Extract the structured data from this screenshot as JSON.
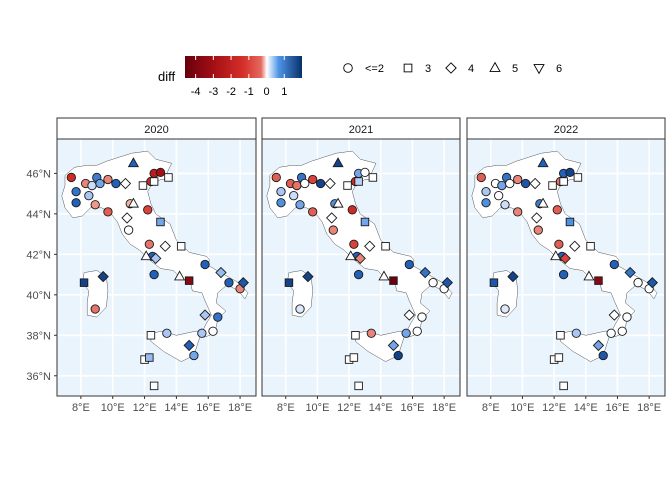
{
  "chart_data": {
    "type": "scatter",
    "layout": "faceted-map",
    "facets": [
      "2020",
      "2021",
      "2022"
    ],
    "xlim": [
      6.5,
      19
    ],
    "ylim": [
      35,
      47.7
    ],
    "x_ticks": [
      8,
      10,
      12,
      14,
      16,
      18
    ],
    "x_tick_labels": [
      "8°E",
      "10°E",
      "12°E",
      "14°E",
      "16°E",
      "18°E"
    ],
    "y_ticks": [
      36,
      38,
      40,
      42,
      44,
      46
    ],
    "y_tick_labels": [
      "36°N",
      "38°N",
      "40°N",
      "42°N",
      "44°N",
      "46°N"
    ],
    "grid": true,
    "legend_position": "top",
    "color_legend": {
      "title": "diff",
      "range": [
        -4.6,
        2
      ],
      "ticks": [
        -4,
        -3,
        -2,
        -1,
        0,
        1
      ],
      "tick_labels": [
        "-4",
        "-3",
        "-2",
        "-1",
        "0",
        "1"
      ],
      "colors": [
        "#67000d",
        "#b2182b",
        "#d6604d",
        "#e8c4b8",
        "#ffffff",
        "#4393c3",
        "#2166ac",
        "#08306b"
      ]
    },
    "shape_legend": [
      {
        "label": "<=2",
        "shape": "circle"
      },
      {
        "label": "3",
        "shape": "square"
      },
      {
        "label": "4",
        "shape": "diamond"
      },
      {
        "label": "5",
        "shape": "triangle-up"
      },
      {
        "label": "6",
        "shape": "triangle-down"
      }
    ],
    "stations": [
      {
        "lon": 7.4,
        "lat": 45.8,
        "shape": "circle"
      },
      {
        "lon": 7.7,
        "lat": 45.1,
        "shape": "circle"
      },
      {
        "lon": 7.7,
        "lat": 44.55,
        "shape": "circle"
      },
      {
        "lon": 8.3,
        "lat": 45.5,
        "shape": "circle"
      },
      {
        "lon": 8.7,
        "lat": 45.4,
        "shape": "circle"
      },
      {
        "lon": 8.9,
        "lat": 44.45,
        "shape": "circle"
      },
      {
        "lon": 9.0,
        "lat": 45.8,
        "shape": "circle"
      },
      {
        "lon": 8.5,
        "lat": 44.9,
        "shape": "circle"
      },
      {
        "lon": 9.2,
        "lat": 45.5,
        "shape": "circle"
      },
      {
        "lon": 9.7,
        "lat": 45.7,
        "shape": "circle"
      },
      {
        "lon": 9.7,
        "lat": 44.1,
        "shape": "circle"
      },
      {
        "lon": 10.2,
        "lat": 45.5,
        "shape": "circle"
      },
      {
        "lon": 10.8,
        "lat": 45.5,
        "shape": "diamond"
      },
      {
        "lon": 11.1,
        "lat": 44.5,
        "shape": "circle"
      },
      {
        "lon": 10.9,
        "lat": 43.8,
        "shape": "diamond"
      },
      {
        "lon": 11.0,
        "lat": 43.2,
        "shape": "circle"
      },
      {
        "lon": 11.3,
        "lat": 44.5,
        "shape": "triangle-up"
      },
      {
        "lon": 11.3,
        "lat": 46.5,
        "shape": "triangle-up"
      },
      {
        "lon": 11.9,
        "lat": 45.4,
        "shape": "square"
      },
      {
        "lon": 12.2,
        "lat": 44.2,
        "shape": "circle"
      },
      {
        "lon": 12.4,
        "lat": 45.6,
        "shape": "circle"
      },
      {
        "lon": 12.6,
        "lat": 46.0,
        "shape": "circle"
      },
      {
        "lon": 12.6,
        "lat": 45.6,
        "shape": "square"
      },
      {
        "lon": 13.0,
        "lat": 46.05,
        "shape": "circle"
      },
      {
        "lon": 13.5,
        "lat": 45.8,
        "shape": "square"
      },
      {
        "lon": 12.5,
        "lat": 41.9,
        "shape": "circle"
      },
      {
        "lon": 13.0,
        "lat": 43.6,
        "shape": "square"
      },
      {
        "lon": 13.3,
        "lat": 42.4,
        "shape": "diamond"
      },
      {
        "lon": 12.3,
        "lat": 42.5,
        "shape": "circle"
      },
      {
        "lon": 12.1,
        "lat": 41.9,
        "shape": "triangle-up"
      },
      {
        "lon": 12.7,
        "lat": 41.8,
        "shape": "diamond"
      },
      {
        "lon": 12.6,
        "lat": 41.0,
        "shape": "circle"
      },
      {
        "lon": 14.3,
        "lat": 42.4,
        "shape": "square"
      },
      {
        "lon": 14.2,
        "lat": 40.9,
        "shape": "triangle-up"
      },
      {
        "lon": 15.8,
        "lat": 41.5,
        "shape": "circle"
      },
      {
        "lon": 14.8,
        "lat": 40.7,
        "shape": "square"
      },
      {
        "lon": 16.8,
        "lat": 41.1,
        "shape": "diamond"
      },
      {
        "lon": 17.3,
        "lat": 40.6,
        "shape": "circle"
      },
      {
        "lon": 18.0,
        "lat": 40.3,
        "shape": "circle"
      },
      {
        "lon": 18.2,
        "lat": 40.6,
        "shape": "diamond"
      },
      {
        "lon": 15.8,
        "lat": 39.0,
        "shape": "diamond"
      },
      {
        "lon": 16.3,
        "lat": 38.2,
        "shape": "circle"
      },
      {
        "lon": 16.6,
        "lat": 38.9,
        "shape": "circle"
      },
      {
        "lon": 15.6,
        "lat": 38.1,
        "shape": "circle"
      },
      {
        "lon": 8.2,
        "lat": 40.6,
        "shape": "square"
      },
      {
        "lon": 9.4,
        "lat": 40.9,
        "shape": "diamond"
      },
      {
        "lon": 8.9,
        "lat": 39.3,
        "shape": "circle"
      },
      {
        "lon": 12.4,
        "lat": 38.0,
        "shape": "square"
      },
      {
        "lon": 13.4,
        "lat": 38.1,
        "shape": "circle"
      },
      {
        "lon": 14.8,
        "lat": 37.5,
        "shape": "diamond"
      },
      {
        "lon": 15.1,
        "lat": 37.0,
        "shape": "circle"
      },
      {
        "lon": 12.0,
        "lat": 36.8,
        "shape": "square"
      },
      {
        "lon": 12.6,
        "lat": 35.5,
        "shape": "square"
      },
      {
        "lon": 12.3,
        "lat": 36.9,
        "shape": "square"
      }
    ],
    "series": [
      {
        "values": [
          -2.5,
          1.3,
          1.5,
          -1.0,
          0.3,
          -0.8,
          1.2,
          0.5,
          0.8,
          -1.0,
          -1.5,
          1.5,
          0,
          -0.5,
          0,
          0,
          0,
          1.5,
          0,
          -2.0,
          -2.5,
          -3.0,
          0,
          -3.5,
          0,
          1.5,
          0.8,
          0,
          -1.2,
          0,
          0.5,
          1.5,
          0,
          0,
          1.5,
          -4.0,
          0.6,
          1.5,
          -1.0,
          1.6,
          0.5,
          0,
          1.3,
          0.5,
          1.8,
          1.8,
          -1.2,
          0,
          0.5,
          1.5,
          0.8,
          0,
          0,
          0.6
        ]
      },
      {
        "values": [
          -1.5,
          0.5,
          1.0,
          -1.5,
          -1.2,
          0.8,
          1.3,
          0.3,
          0,
          -2.0,
          -1.5,
          1.8,
          0,
          1.0,
          0,
          -1.0,
          0,
          1.8,
          0,
          -2.5,
          -2.5,
          0.8,
          0.4,
          0,
          0,
          1.5,
          0.8,
          0,
          -2.0,
          0,
          -1.0,
          1.5,
          0,
          0,
          1.5,
          -4.5,
          1.3,
          0,
          0,
          1.6,
          0,
          0,
          0,
          0.8,
          1.8,
          1.8,
          0.2,
          0,
          -1.0,
          0.8,
          1.8,
          0,
          0,
          0
        ]
      },
      {
        "values": [
          -1.5,
          0.5,
          1.0,
          0,
          0.8,
          0.3,
          1.3,
          0,
          0,
          -1.0,
          -1.0,
          1.6,
          0,
          1.2,
          0,
          -1.0,
          0,
          1.5,
          0,
          -1.5,
          -1.2,
          1.5,
          0,
          1.8,
          0,
          1.5,
          1.0,
          0,
          -1.5,
          0,
          -2.0,
          1.5,
          0,
          0,
          1.5,
          -4.0,
          1.3,
          0,
          0,
          1.6,
          0,
          0,
          0,
          0,
          1.6,
          1.8,
          0.2,
          0,
          0.5,
          0.8,
          1.6,
          0,
          0,
          0
        ]
      }
    ]
  }
}
